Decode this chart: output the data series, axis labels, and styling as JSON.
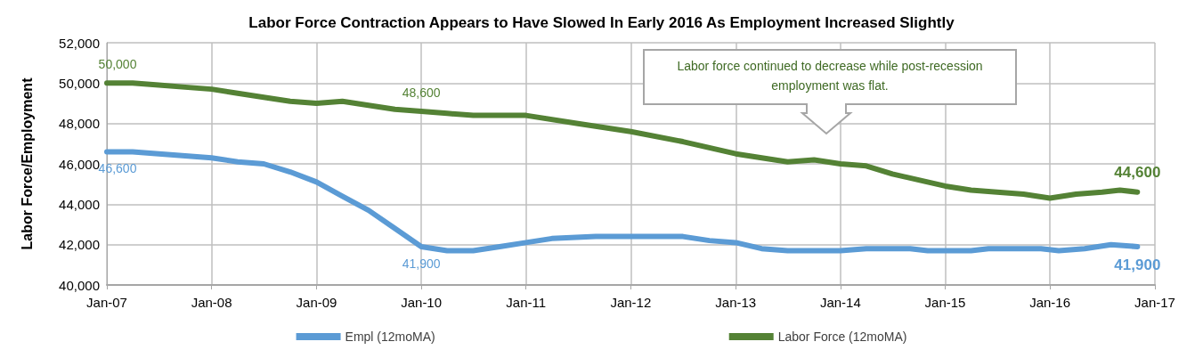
{
  "chart_data": {
    "type": "line",
    "title": "Labor Force Contraction Appears to Have Slowed In Early 2016 As Employment Increased Slightly",
    "ylabel": "Labor Force/Employment",
    "annotations": [
      "Labor force continued to decrease while post-recession employment was flat."
    ],
    "series": [
      {
        "name": "Empl (12moMA)",
        "color": "#5b9bd5",
        "x": [
          "2007-01",
          "2007-04",
          "2007-07",
          "2007-10",
          "2008-01",
          "2008-04",
          "2008-07",
          "2008-10",
          "2009-01",
          "2009-04",
          "2009-07",
          "2009-10",
          "2010-01",
          "2010-04",
          "2010-07",
          "2010-10",
          "2011-01",
          "2011-04",
          "2011-09",
          "2012-01",
          "2012-07",
          "2012-10",
          "2013-01",
          "2013-04",
          "2013-07",
          "2014-01",
          "2014-04",
          "2014-09",
          "2014-11",
          "2015-01",
          "2015-04",
          "2015-06",
          "2015-12",
          "2016-02",
          "2016-05",
          "2016-08",
          "2016-11"
        ],
        "values": [
          46600,
          46600,
          46500,
          46400,
          46300,
          46100,
          46000,
          45600,
          45100,
          44400,
          43700,
          42800,
          41900,
          41700,
          41700,
          41900,
          42100,
          42300,
          42400,
          42400,
          42400,
          42200,
          42100,
          41800,
          41700,
          41700,
          41800,
          41800,
          41700,
          41700,
          41700,
          41800,
          41800,
          41700,
          41800,
          42000,
          41900
        ],
        "value_labels": [
          "46,600",
          null,
          null,
          null,
          null,
          null,
          null,
          null,
          null,
          null,
          null,
          null,
          "41,900",
          null,
          null,
          null,
          null,
          null,
          null,
          null,
          null,
          null,
          null,
          null,
          null,
          null,
          null,
          null,
          null,
          null,
          null,
          null,
          null,
          null,
          null,
          null,
          "41,900"
        ]
      },
      {
        "name": "Labor Force (12moMA)",
        "color": "#548235",
        "x": [
          "2007-01",
          "2007-04",
          "2007-07",
          "2007-10",
          "2008-01",
          "2008-04",
          "2008-07",
          "2008-10",
          "2009-01",
          "2009-04",
          "2009-07",
          "2009-10",
          "2010-01",
          "2010-04",
          "2010-07",
          "2010-10",
          "2011-01",
          "2011-07",
          "2012-01",
          "2012-07",
          "2013-01",
          "2013-07",
          "2013-10",
          "2014-01",
          "2014-04",
          "2014-07",
          "2014-10",
          "2015-01",
          "2015-04",
          "2015-07",
          "2015-10",
          "2016-01",
          "2016-04",
          "2016-07",
          "2016-09",
          "2016-11"
        ],
        "values": [
          50000,
          50000,
          49900,
          49800,
          49700,
          49500,
          49300,
          49100,
          49000,
          49100,
          48900,
          48700,
          48600,
          48500,
          48400,
          48400,
          48400,
          48000,
          47600,
          47100,
          46500,
          46100,
          46200,
          46000,
          45900,
          45500,
          45200,
          44900,
          44700,
          44600,
          44500,
          44300,
          44500,
          44600,
          44700,
          44600
        ],
        "value_labels": [
          "50,000",
          null,
          null,
          null,
          null,
          null,
          null,
          null,
          null,
          null,
          null,
          null,
          "48,600",
          null,
          null,
          null,
          null,
          null,
          null,
          null,
          null,
          null,
          null,
          null,
          null,
          null,
          null,
          null,
          null,
          null,
          null,
          null,
          null,
          null,
          null,
          "44,600"
        ]
      }
    ],
    "xlim": [
      "2007-01",
      "2017-01"
    ],
    "xticks": [
      {
        "value": "2007-01",
        "label": "Jan-07"
      },
      {
        "value": "2008-01",
        "label": "Jan-08"
      },
      {
        "value": "2009-01",
        "label": "Jan-09"
      },
      {
        "value": "2010-01",
        "label": "Jan-10"
      },
      {
        "value": "2011-01",
        "label": "Jan-11"
      },
      {
        "value": "2012-01",
        "label": "Jan-12"
      },
      {
        "value": "2013-01",
        "label": "Jan-13"
      },
      {
        "value": "2014-01",
        "label": "Jan-14"
      },
      {
        "value": "2015-01",
        "label": "Jan-15"
      },
      {
        "value": "2016-01",
        "label": "Jan-16"
      },
      {
        "value": "2017-01",
        "label": "Jan-17"
      }
    ],
    "ylim": [
      40000,
      52000
    ],
    "yticks": [
      {
        "value": 40000,
        "label": "40,000"
      },
      {
        "value": 42000,
        "label": "42,000"
      },
      {
        "value": 44000,
        "label": "44,000"
      },
      {
        "value": 46000,
        "label": "46,000"
      },
      {
        "value": 48000,
        "label": "48,000"
      },
      {
        "value": 50000,
        "label": "50,000"
      },
      {
        "value": 52000,
        "label": "52,000"
      }
    ],
    "grid": true,
    "legend": "bottom",
    "marker": "none",
    "line_style": "solid"
  }
}
